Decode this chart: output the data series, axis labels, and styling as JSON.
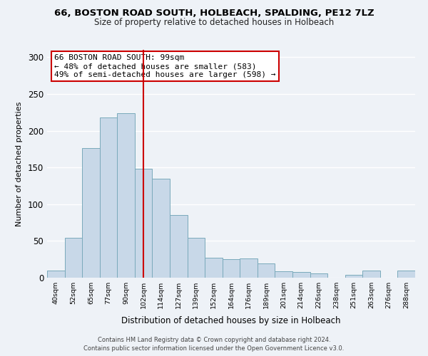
{
  "title1": "66, BOSTON ROAD SOUTH, HOLBEACH, SPALDING, PE12 7LZ",
  "title2": "Size of property relative to detached houses in Holbeach",
  "xlabel": "Distribution of detached houses by size in Holbeach",
  "ylabel": "Number of detached properties",
  "bar_color": "#c8d8e8",
  "bar_edge_color": "#7aaabb",
  "categories": [
    "40sqm",
    "52sqm",
    "65sqm",
    "77sqm",
    "90sqm",
    "102sqm",
    "114sqm",
    "127sqm",
    "139sqm",
    "152sqm",
    "164sqm",
    "176sqm",
    "189sqm",
    "201sqm",
    "214sqm",
    "226sqm",
    "238sqm",
    "251sqm",
    "263sqm",
    "276sqm",
    "288sqm"
  ],
  "values": [
    10,
    54,
    176,
    218,
    224,
    148,
    135,
    85,
    54,
    27,
    25,
    26,
    19,
    9,
    8,
    6,
    0,
    4,
    10,
    0,
    10
  ],
  "ylim": [
    0,
    310
  ],
  "yticks": [
    0,
    50,
    100,
    150,
    200,
    250,
    300
  ],
  "vline_index": 5,
  "vline_color": "#cc0000",
  "annotation_title": "66 BOSTON ROAD SOUTH: 99sqm",
  "annotation_line1": "← 48% of detached houses are smaller (583)",
  "annotation_line2": "49% of semi-detached houses are larger (598) →",
  "annotation_box_color": "#ffffff",
  "annotation_box_edge": "#cc0000",
  "footer1": "Contains HM Land Registry data © Crown copyright and database right 2024.",
  "footer2": "Contains public sector information licensed under the Open Government Licence v3.0.",
  "background_color": "#eef2f7"
}
